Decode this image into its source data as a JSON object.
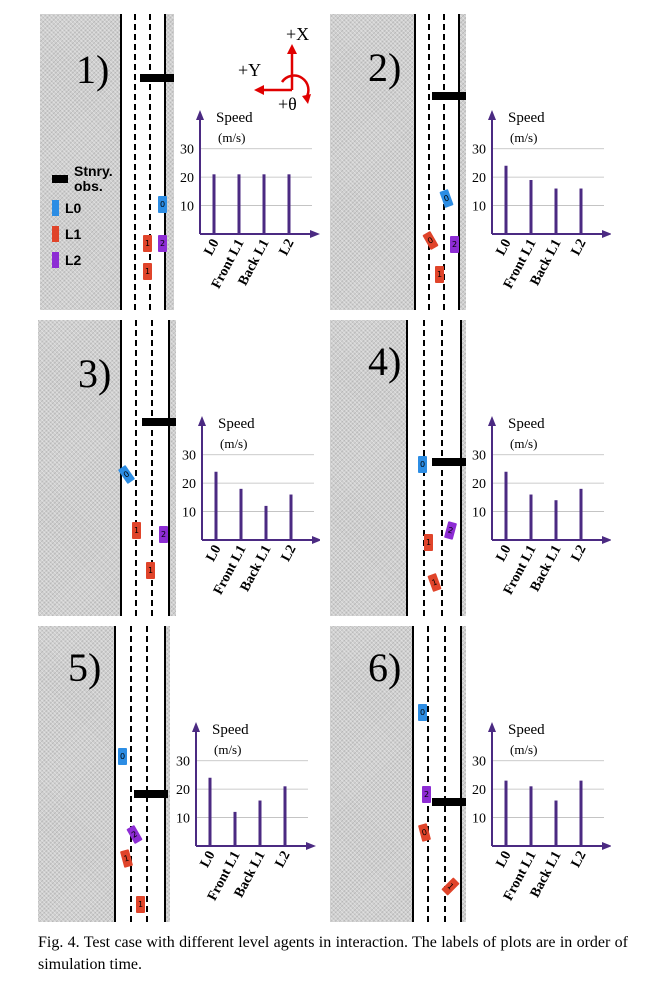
{
  "legend": [
    {
      "label": "Stnry. obs.",
      "color": "#000000"
    },
    {
      "label": "L0",
      "color": "#2c8de4"
    },
    {
      "label": "L1",
      "color": "#e0442a"
    },
    {
      "label": "L2",
      "color": "#8d2cd4"
    }
  ],
  "axes": {
    "x": "+X",
    "y": "+Y",
    "theta": "+θ",
    "color": "#e00000"
  },
  "panels": [
    {
      "label": "1)",
      "agents": [
        "0",
        "1",
        "2",
        "1"
      ]
    },
    {
      "label": "2)",
      "agents": [
        "0",
        "0",
        "2",
        "1"
      ]
    },
    {
      "label": "3)",
      "agents": [
        "0",
        "1",
        "2",
        "1"
      ]
    },
    {
      "label": "4)",
      "agents": [
        "0",
        "1",
        "2",
        "1"
      ]
    },
    {
      "label": "5)",
      "agents": [
        "0",
        "2",
        "1",
        "1"
      ]
    },
    {
      "label": "6)",
      "agents": [
        "0",
        "2",
        "0",
        "1"
      ]
    }
  ],
  "caption": "Fig. 4.   Test case with different level agents in interaction. The labels of plots are in order of simulation time.",
  "chart_data": [
    {
      "type": "bar",
      "title": "Speed",
      "ylabel": "(m/s)",
      "categories": [
        "L0",
        "Front L1",
        "Back L1",
        "L2"
      ],
      "values": [
        21,
        21,
        21,
        21
      ],
      "yticks": [
        10,
        20,
        30
      ],
      "ylim": [
        0,
        38
      ],
      "color": "#4b2a82"
    },
    {
      "type": "bar",
      "title": "Speed",
      "ylabel": "(m/s)",
      "categories": [
        "L0",
        "Front L1",
        "Back L1",
        "L2"
      ],
      "values": [
        24,
        19,
        16,
        16
      ],
      "yticks": [
        10,
        20,
        30
      ],
      "ylim": [
        0,
        38
      ],
      "color": "#4b2a82"
    },
    {
      "type": "bar",
      "title": "Speed",
      "ylabel": "(m/s)",
      "categories": [
        "L0",
        "Front L1",
        "Back L1",
        "L2"
      ],
      "values": [
        24,
        18,
        12,
        16
      ],
      "yticks": [
        10,
        20,
        30
      ],
      "ylim": [
        0,
        38
      ],
      "color": "#4b2a82"
    },
    {
      "type": "bar",
      "title": "Speed",
      "ylabel": "(m/s)",
      "categories": [
        "L0",
        "Front L1",
        "Back L1",
        "L2"
      ],
      "values": [
        24,
        16,
        14,
        18
      ],
      "yticks": [
        10,
        20,
        30
      ],
      "ylim": [
        0,
        38
      ],
      "color": "#4b2a82"
    },
    {
      "type": "bar",
      "title": "Speed",
      "ylabel": "(m/s)",
      "categories": [
        "L0",
        "Front L1",
        "Back L1",
        "L2"
      ],
      "values": [
        24,
        12,
        16,
        21
      ],
      "yticks": [
        10,
        20,
        30
      ],
      "ylim": [
        0,
        38
      ],
      "color": "#4b2a82"
    },
    {
      "type": "bar",
      "title": "Speed",
      "ylabel": "(m/s)",
      "categories": [
        "L0",
        "Front L1",
        "Back L1",
        "L2"
      ],
      "values": [
        23,
        21,
        16,
        23
      ],
      "yticks": [
        10,
        20,
        30
      ],
      "ylim": [
        0,
        38
      ],
      "color": "#4b2a82"
    }
  ]
}
